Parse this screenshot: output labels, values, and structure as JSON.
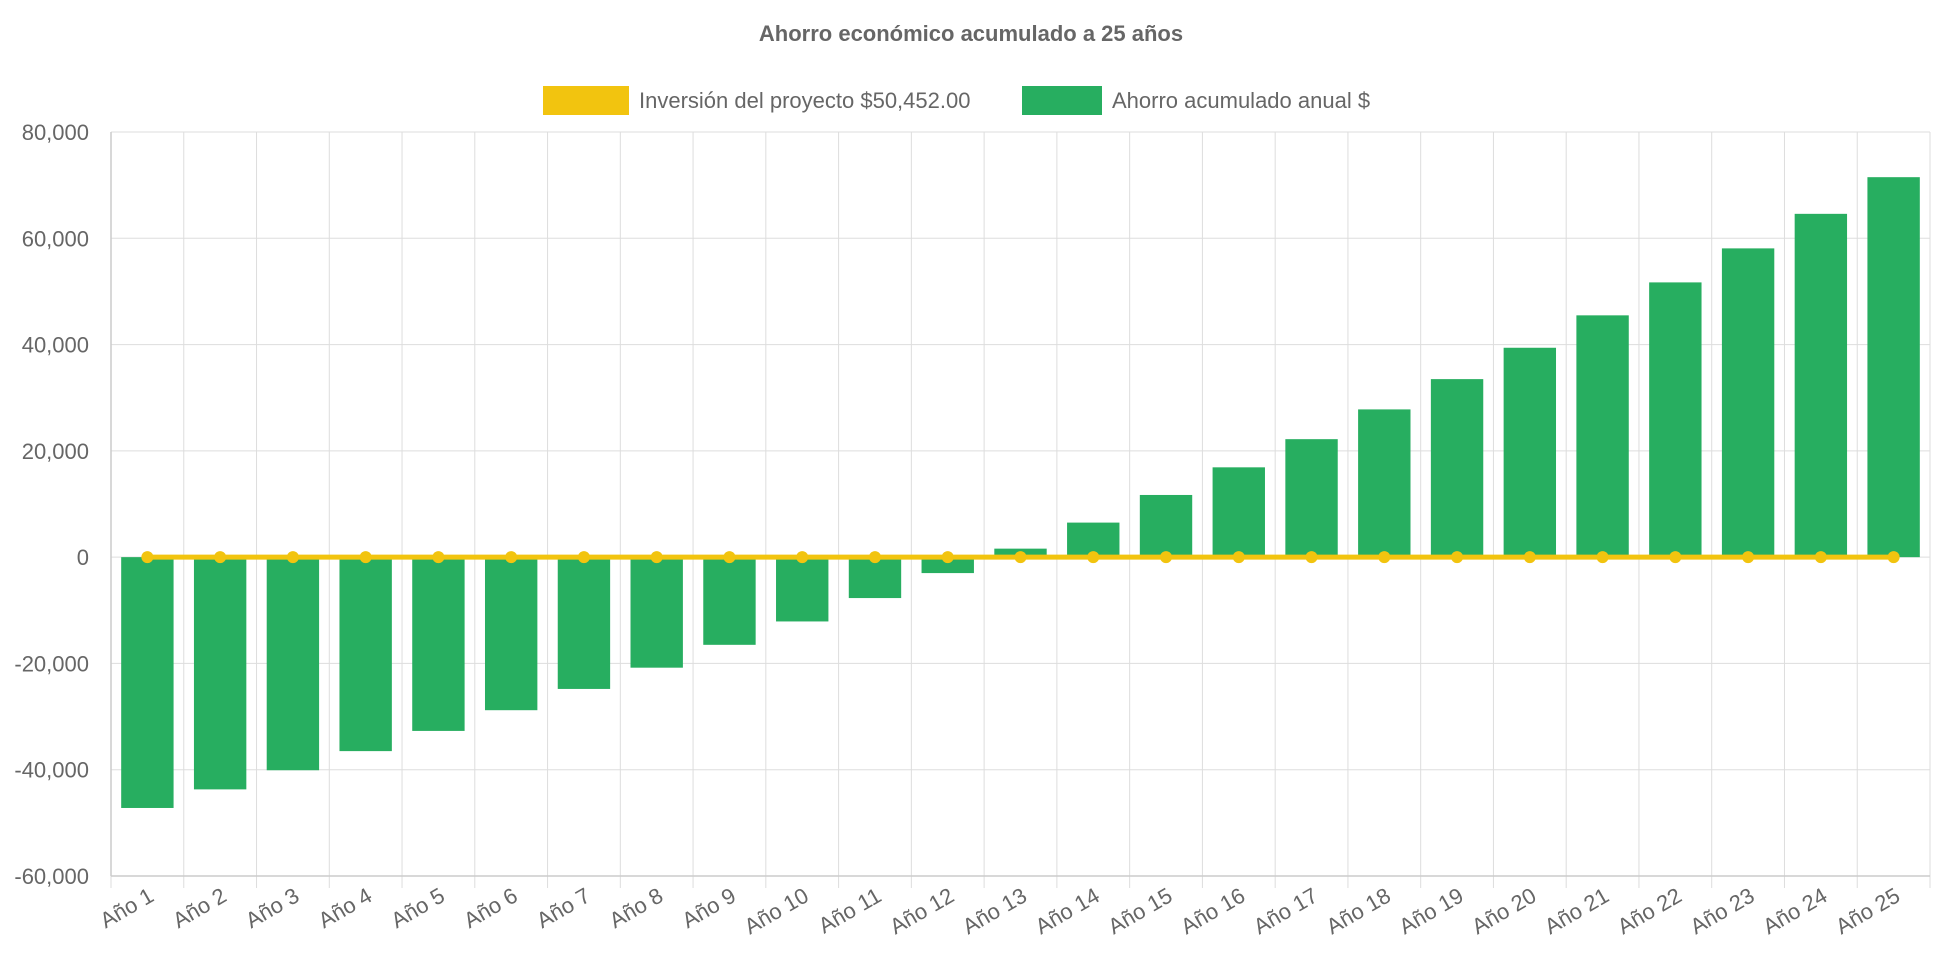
{
  "chart_data": {
    "type": "bar",
    "title": "Ahorro económico acumulado a 25 años",
    "categories": [
      "Año 1",
      "Año 2",
      "Año 3",
      "Año 4",
      "Año 5",
      "Año 6",
      "Año 7",
      "Año 8",
      "Año 9",
      "Año 10",
      "Año 11",
      "Año 12",
      "Año 13",
      "Año 14",
      "Año 15",
      "Año 16",
      "Año 17",
      "Año 18",
      "Año 19",
      "Año 20",
      "Año 21",
      "Año 22",
      "Año 23",
      "Año 24",
      "Año 25"
    ],
    "series": [
      {
        "name": "Inversión del proyecto $50,452.00",
        "type": "line",
        "color": "#f2c40f",
        "values": [
          0,
          0,
          0,
          0,
          0,
          0,
          0,
          0,
          0,
          0,
          0,
          0,
          0,
          0,
          0,
          0,
          0,
          0,
          0,
          0,
          0,
          0,
          0,
          0,
          0
        ]
      },
      {
        "name": "Ahorro acumulado anual $",
        "type": "bar",
        "color": "#27ae60",
        "values": [
          -47200,
          -43700,
          -40100,
          -36500,
          -32700,
          -28800,
          -24800,
          -20800,
          -16500,
          -12100,
          -7700,
          -3000,
          1600,
          6500,
          11700,
          16900,
          22200,
          27800,
          33500,
          39400,
          45500,
          51700,
          58100,
          64600,
          71500
        ]
      }
    ],
    "ylim": [
      -60000,
      80000
    ],
    "yticks": [
      "80,000",
      "60,000",
      "40,000",
      "20,000",
      "0",
      "-20,000",
      "-40,000",
      "-60,000"
    ],
    "grid": true,
    "legend_position": "top-center",
    "text_color": "#666666",
    "grid_color": "#dddddd"
  }
}
